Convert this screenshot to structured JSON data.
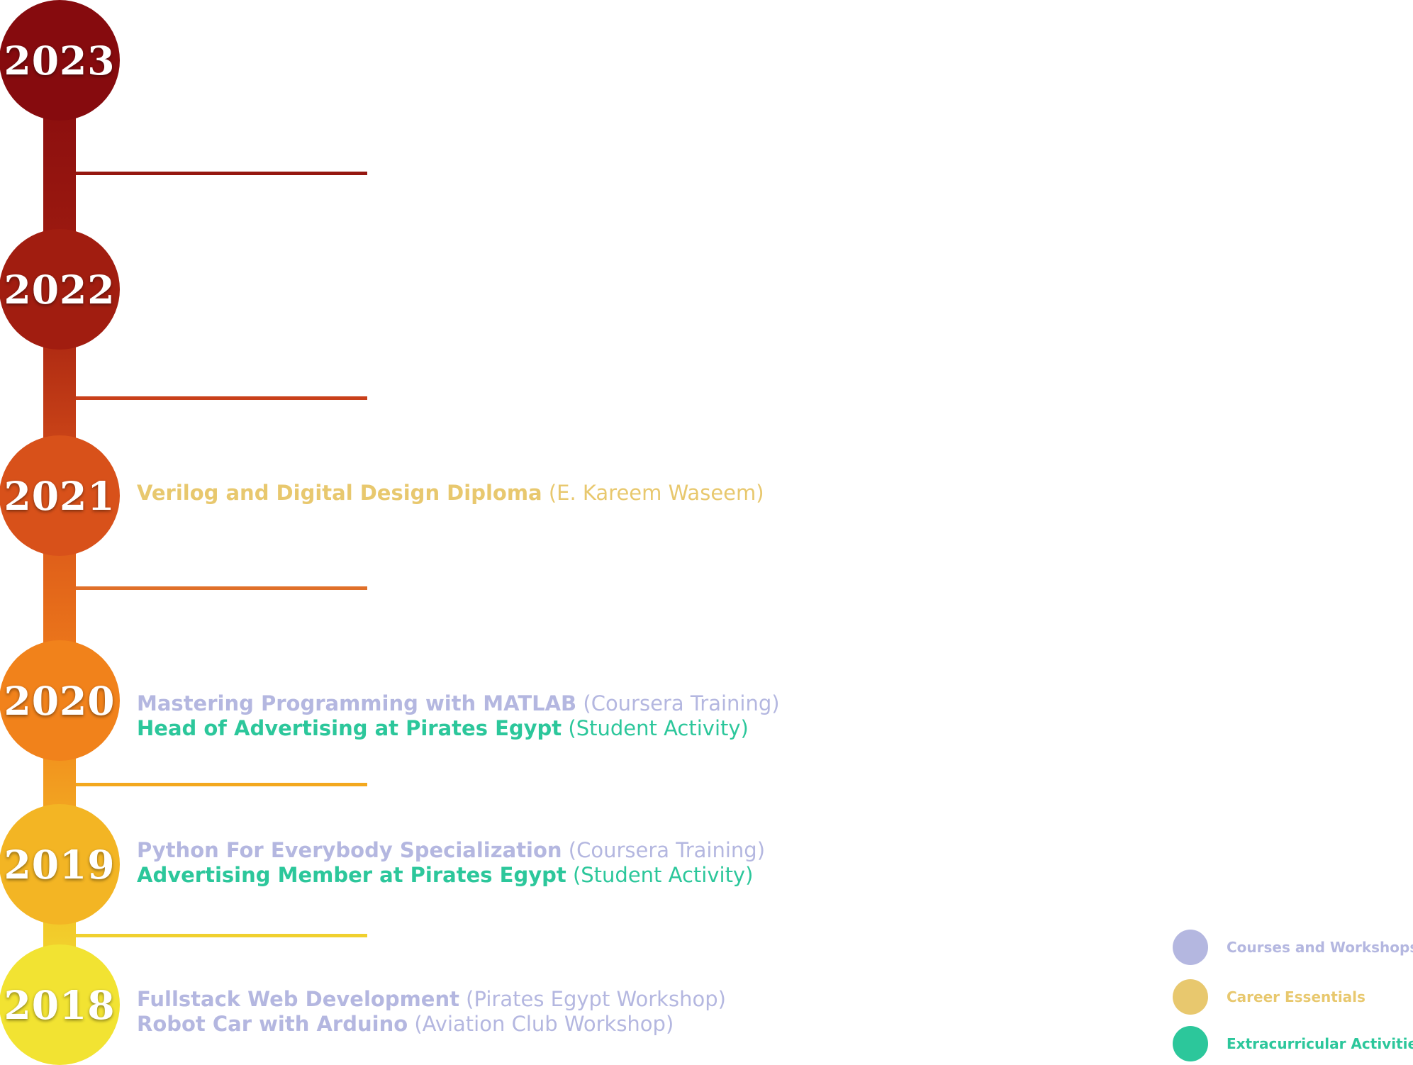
{
  "colors": {
    "courses": "#b4b7e0",
    "career": "#e8c86e",
    "extracurricular": "#2cc79b"
  },
  "legend": [
    {
      "label": "Courses and Workshops",
      "category": "courses"
    },
    {
      "label": "Career Essentials",
      "category": "career"
    },
    {
      "label": "Extracurricular Activities",
      "category": "extracurricular"
    }
  ],
  "timeline": [
    {
      "year": "2023",
      "color": "#860b0e",
      "entries": []
    },
    {
      "year": "2022",
      "color": "#a11d10",
      "entries": []
    },
    {
      "year": "2021",
      "color": "#d8511a",
      "entries": [
        {
          "title": "Verilog and Digital Design Diploma",
          "note": "(E. Kareem Waseem)",
          "category": "career"
        }
      ]
    },
    {
      "year": "2020",
      "color": "#f1821b",
      "entries": [
        {
          "title": "Mastering Programming with MATLAB",
          "note": "(Coursera Training)",
          "category": "courses"
        },
        {
          "title": "Head of Advertising at Pirates Egypt",
          "note": "(Student Activity)",
          "category": "extracurricular"
        }
      ]
    },
    {
      "year": "2019",
      "color": "#f3b524",
      "entries": [
        {
          "title": "Python For Everybody Specialization",
          "note": "(Coursera Training)",
          "category": "courses"
        },
        {
          "title": "Advertising Member at Pirates Egypt",
          "note": "(Student Activity)",
          "category": "extracurricular"
        }
      ]
    },
    {
      "year": "2018",
      "color": "#f2e332",
      "entries": [
        {
          "title": "Fullstack Web Development",
          "note": "(Pirates Egypt Workshop)",
          "category": "courses"
        },
        {
          "title": "Robot Car with Arduino",
          "note": "(Aviation Club Workshop)",
          "category": "courses"
        }
      ]
    }
  ],
  "ticks": [
    {
      "color": "#951710"
    },
    {
      "color": "#c9401a"
    },
    {
      "color": "#e0702a"
    },
    {
      "color": "#f3a81e"
    },
    {
      "color": "#f0d02e"
    }
  ]
}
